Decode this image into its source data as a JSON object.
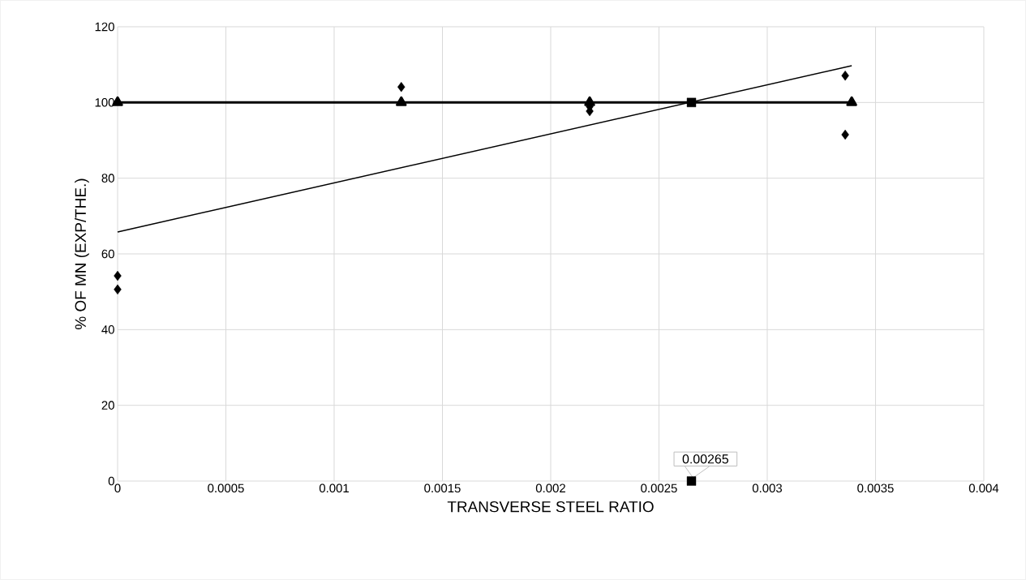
{
  "chart_data": {
    "type": "scatter",
    "xlabel": "TRANSVERSE STEEL RATIO",
    "ylabel": "% OF MN (EXP/THE.)",
    "xlim": [
      0,
      0.004
    ],
    "ylim": [
      0,
      120
    ],
    "xticks": [
      0,
      0.0005,
      0.001,
      0.0015,
      0.002,
      0.0025,
      0.003,
      0.0035,
      0.004
    ],
    "yticks": [
      0,
      20,
      40,
      60,
      80,
      100,
      120
    ],
    "grid": true,
    "series": [
      {
        "type": "line",
        "color": "#000000",
        "marker": "triangle",
        "line_style": "solid",
        "x": [
          0,
          0.00131,
          0.00218,
          0.00339
        ],
        "values": [
          100,
          100,
          100,
          100
        ]
      },
      {
        "color": "#000000",
        "marker": "diamond",
        "x": [
          0,
          0,
          0.00131,
          0.00218,
          0.00218,
          0.00336,
          0.00336
        ],
        "values": [
          54.2,
          50.6,
          104.1,
          98.9,
          97.7,
          107.1,
          91.5
        ]
      },
      {
        "type": "line",
        "color": "#000000",
        "marker": "none",
        "line_style": "solid",
        "x": [
          0,
          0.00339
        ],
        "values": [
          65.8,
          109.7
        ]
      },
      {
        "color": "#000000",
        "marker": "square",
        "x": [
          0.00265,
          0.00265
        ],
        "values": [
          100,
          0
        ]
      }
    ],
    "annotations": [
      {
        "text": "0.00265",
        "x": 0.00265,
        "y": 0
      }
    ]
  }
}
